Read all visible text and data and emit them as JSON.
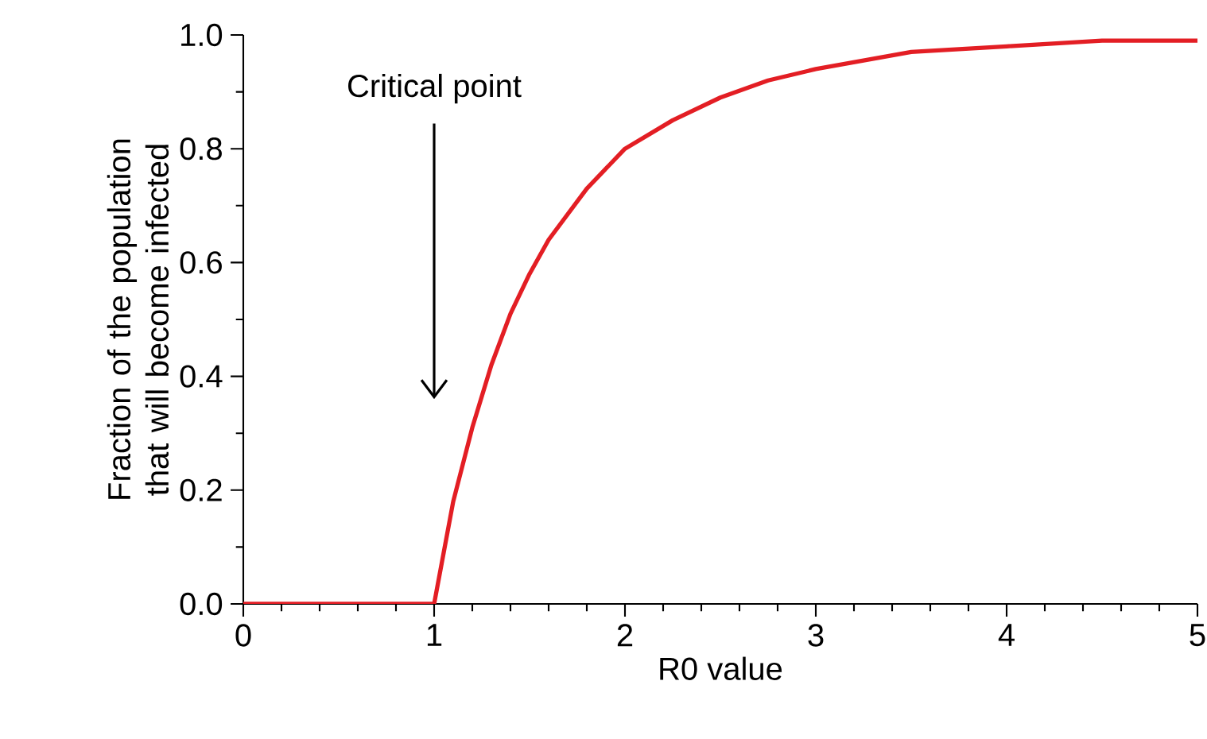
{
  "chart_data": {
    "type": "line",
    "xlabel": "R0 value",
    "ylabel": "Fraction of the population that will become infected",
    "x": [
      0,
      1,
      1.05,
      1.1,
      1.2,
      1.3,
      1.4,
      1.5,
      1.6,
      1.8,
      2.0,
      2.25,
      2.5,
      2.75,
      3,
      3.5,
      4,
      4.5,
      5
    ],
    "values": [
      0,
      0,
      0.09,
      0.18,
      0.31,
      0.42,
      0.51,
      0.58,
      0.64,
      0.73,
      0.8,
      0.85,
      0.89,
      0.92,
      0.94,
      0.97,
      0.98,
      0.99,
      0.99
    ],
    "color": "#e31e24",
    "xlim": [
      0,
      5
    ],
    "ylim": [
      0,
      1
    ],
    "xticks": [
      0,
      1,
      2,
      3,
      4,
      5
    ],
    "yticks": [
      {
        "value": 0,
        "label": "0.0"
      },
      {
        "value": 0.2,
        "label": "0.2"
      },
      {
        "value": 0.4,
        "label": "0.4"
      },
      {
        "value": 0.6,
        "label": "0.6"
      },
      {
        "value": 0.8,
        "label": "0.8"
      },
      {
        "value": 1,
        "label": "1.0"
      }
    ],
    "annotations": [
      "Critical point"
    ],
    "grid": false,
    "marker": "none",
    "line_style": "solid"
  }
}
